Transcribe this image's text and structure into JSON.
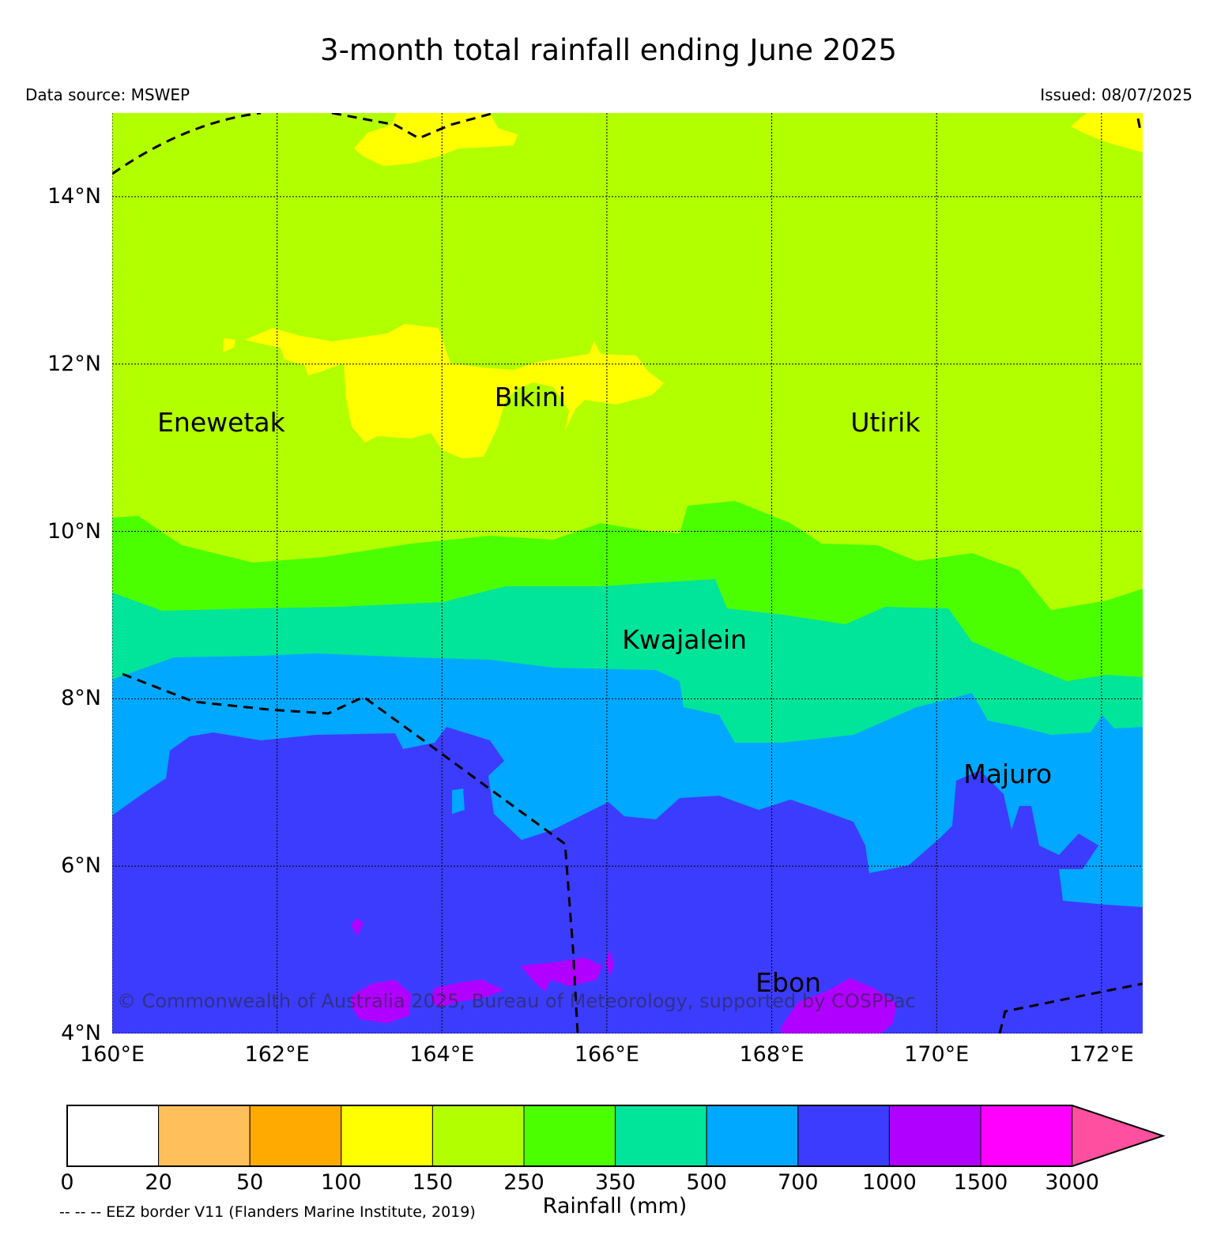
{
  "title": "3-month total rainfall ending June 2025",
  "data_source": "Data source: MSWEP",
  "issued": "Issued: 08/07/2025",
  "map": {
    "lon_range": [
      160,
      172.5
    ],
    "lat_range": [
      4,
      15
    ],
    "lon_ticks": [
      {
        "lon": 160,
        "label": "160°E"
      },
      {
        "lon": 162,
        "label": "162°E"
      },
      {
        "lon": 164,
        "label": "164°E"
      },
      {
        "lon": 166,
        "label": "166°E"
      },
      {
        "lon": 168,
        "label": "168°E"
      },
      {
        "lon": 170,
        "label": "170°E"
      },
      {
        "lon": 172,
        "label": "172°E"
      }
    ],
    "lat_ticks": [
      {
        "lat": 14,
        "label": "14°N"
      },
      {
        "lat": 12,
        "label": "12°N"
      },
      {
        "lat": 10,
        "label": "10°N"
      },
      {
        "lat": 8,
        "label": "8°N"
      },
      {
        "lat": 6,
        "label": "6°N"
      },
      {
        "lat": 4,
        "label": "4°N"
      }
    ],
    "grid": true,
    "places": [
      {
        "name": "Enewetak",
        "lon": 162.1,
        "lat": 11.3
      },
      {
        "name": "Bikini",
        "lon": 165.5,
        "lat": 11.6
      },
      {
        "name": "Utirik",
        "lon": 169.8,
        "lat": 11.3
      },
      {
        "name": "Kwajalein",
        "lon": 167.7,
        "lat": 8.7
      },
      {
        "name": "Majuro",
        "lon": 171.4,
        "lat": 7.1
      },
      {
        "name": "Ebon",
        "lon": 168.6,
        "lat": 4.6
      }
    ],
    "copyright": "© Commonwealth of Australia 2025, Bureau of Meteorology, supported by COSPPac"
  },
  "colorbar": {
    "levels": [
      "0",
      "20",
      "50",
      "100",
      "150",
      "250",
      "350",
      "500",
      "700",
      "1000",
      "1500",
      "3000"
    ],
    "colors": [
      "#ffffff",
      "#ffbf5a",
      "#ffaa00",
      "#ffff00",
      "#b2ff00",
      "#4cff00",
      "#00e599",
      "#00a8ff",
      "#3c3cff",
      "#b000ff",
      "#ff00ff",
      "#ff4fa0"
    ],
    "label": "Rainfall (mm)"
  },
  "eez_note": "-- -- -- EEZ border V11 (Flanders Marine Institute, 2019)"
}
